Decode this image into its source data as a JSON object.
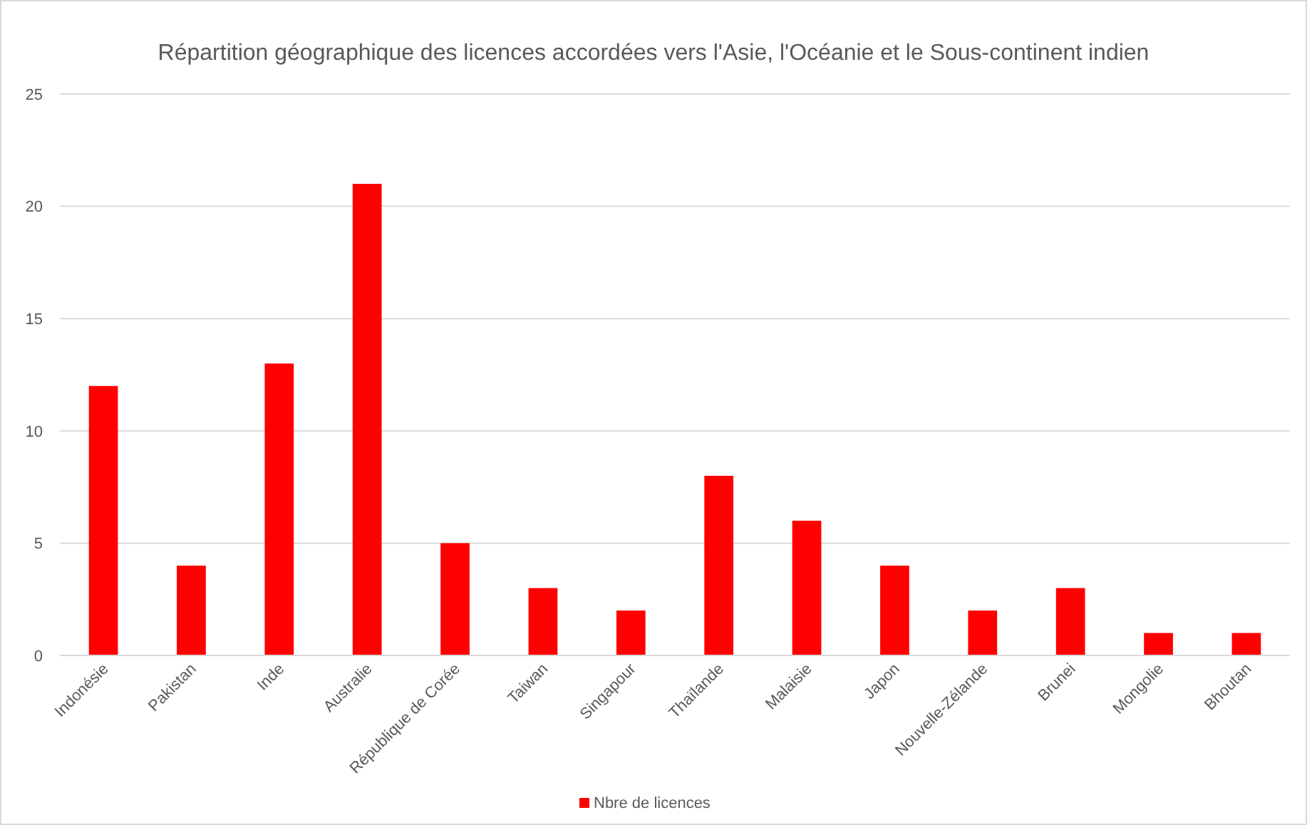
{
  "chart_data": {
    "type": "bar",
    "title": "Répartition géographique des licences accordées vers l'Asie, l'Océanie et le Sous-continent indien",
    "categories": [
      "Indonésie",
      "Pakistan",
      "Inde",
      "Australie",
      "République de Corée",
      "Taiwan",
      "Singapour",
      "Thaïlande",
      "Malaisie",
      "Japon",
      "Nouvelle-Zélande",
      "Brunei",
      "Mongolie",
      "Bhoutan"
    ],
    "series": [
      {
        "name": "Nbre de licences",
        "color": "#ff0000",
        "values": [
          12,
          4,
          13,
          21,
          5,
          3,
          2,
          8,
          6,
          4,
          2,
          3,
          1,
          1
        ]
      }
    ],
    "ylim": [
      0,
      25
    ],
    "yticks": [
      0,
      5,
      10,
      15,
      20,
      25
    ],
    "grid": "y",
    "legend": "bottom"
  }
}
